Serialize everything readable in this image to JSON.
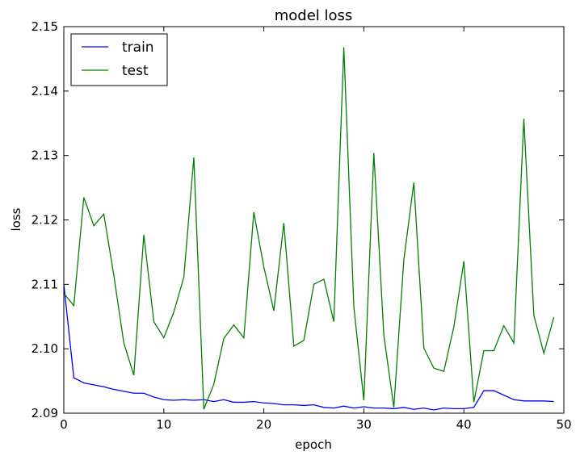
{
  "chart_data": {
    "type": "line",
    "title": "model loss",
    "xlabel": "epoch",
    "ylabel": "loss",
    "xlim": [
      0,
      50
    ],
    "ylim": [
      2.09,
      2.15
    ],
    "xticks": [
      0,
      10,
      20,
      30,
      40,
      50
    ],
    "yticks": [
      2.09,
      2.1,
      2.11,
      2.12,
      2.13,
      2.14,
      2.15
    ],
    "xtick_labels": [
      "0",
      "10",
      "20",
      "30",
      "40",
      "50"
    ],
    "ytick_labels": [
      "2.09",
      "2.10",
      "2.11",
      "2.12",
      "2.13",
      "2.14",
      "2.15"
    ],
    "grid": false,
    "legend": {
      "position": "top-left",
      "entries": [
        "train",
        "test"
      ]
    },
    "x": [
      0,
      1,
      2,
      3,
      4,
      5,
      6,
      7,
      8,
      9,
      10,
      11,
      12,
      13,
      14,
      15,
      16,
      17,
      18,
      19,
      20,
      21,
      22,
      23,
      24,
      25,
      26,
      27,
      28,
      29,
      30,
      31,
      32,
      33,
      34,
      35,
      36,
      37,
      38,
      39,
      40,
      41,
      42,
      43,
      44,
      45,
      46,
      47,
      48,
      49
    ],
    "series": [
      {
        "name": "train",
        "color": "#0000ff",
        "values": [
          2.11,
          2.0955,
          2.0947,
          2.0944,
          2.0941,
          2.0937,
          2.0934,
          2.0931,
          2.0931,
          2.0925,
          2.0921,
          2.092,
          2.0921,
          2.092,
          2.0921,
          2.0918,
          2.0921,
          2.0917,
          2.0917,
          2.0918,
          2.0916,
          2.0915,
          2.0913,
          2.0913,
          2.0912,
          2.0913,
          2.0909,
          2.0908,
          2.0911,
          2.0908,
          2.091,
          2.0908,
          2.0908,
          2.0907,
          2.0909,
          2.0906,
          2.0908,
          2.0905,
          2.0908,
          2.0907,
          2.0907,
          2.0909,
          2.0935,
          2.0935,
          2.0928,
          2.0921,
          2.0919,
          2.0919,
          2.0919,
          2.0918
        ]
      },
      {
        "name": "test",
        "color": "#008000",
        "values": [
          2.1086,
          2.1067,
          2.1235,
          2.1191,
          2.1209,
          2.1114,
          2.1009,
          2.0959,
          2.1177,
          2.1042,
          2.1017,
          2.1057,
          2.1111,
          2.1297,
          2.0906,
          2.0945,
          2.1016,
          2.1037,
          2.1017,
          2.1212,
          2.1127,
          2.1059,
          2.1195,
          2.1004,
          2.1013,
          2.11,
          2.1108,
          2.1042,
          2.1468,
          2.1065,
          2.092,
          2.1304,
          2.1021,
          2.0909,
          2.1138,
          2.1258,
          2.1001,
          2.097,
          2.0965,
          2.1034,
          2.1136,
          2.0917,
          2.0997,
          2.0997,
          2.1036,
          2.1009,
          2.1357,
          2.1052,
          2.0993,
          2.1049
        ]
      }
    ]
  }
}
